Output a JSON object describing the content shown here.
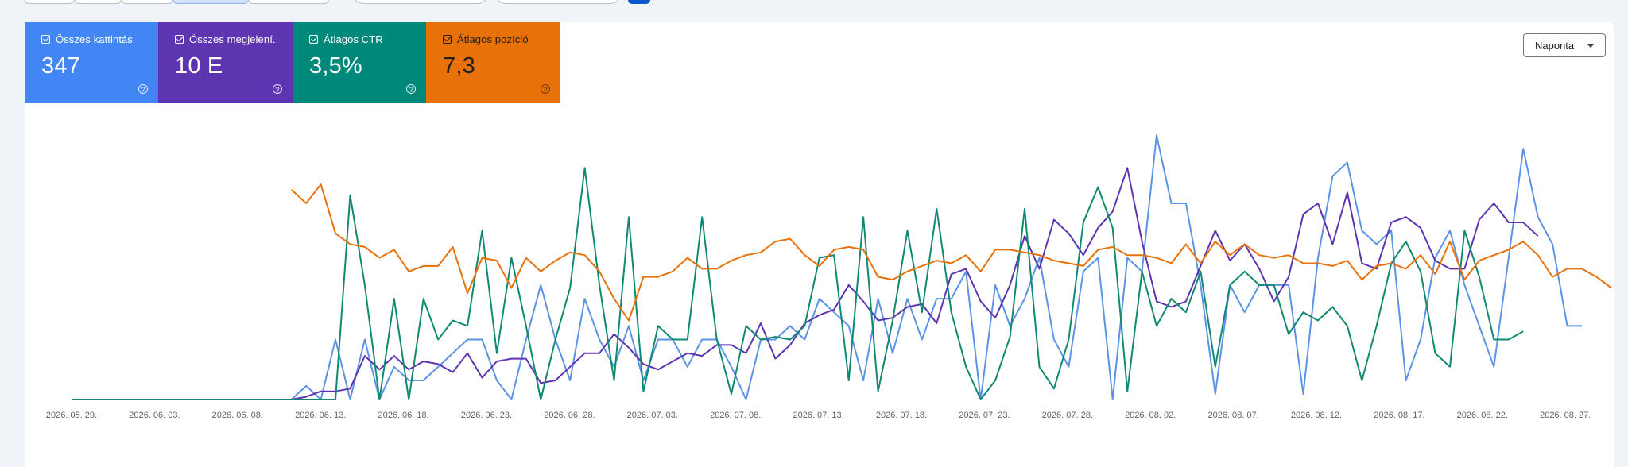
{
  "metrics": [
    {
      "label": "Összes kattintás",
      "value": "347",
      "color": "#4285f4"
    },
    {
      "label": "Összes megjelení...",
      "value": "10 E",
      "color": "#5e35b1"
    },
    {
      "label": "Átlagos CTR",
      "value": "3,5%",
      "color": "#00897b"
    },
    {
      "label": "Átlagos pozíció",
      "value": "7,3",
      "color": "#e8710a"
    }
  ],
  "help_glyph": "?",
  "granularity": {
    "selected": "Naponta"
  },
  "icons": {
    "checkbox": "checkbox-checked-icon",
    "help": "help-circle-icon",
    "dropdown": "caret-down-icon"
  },
  "chart_data": {
    "type": "line",
    "x_tick_labels": [
      "2026. 05. 29.",
      "2026. 06. 03.",
      "2026. 06. 08.",
      "2026. 06. 13.",
      "2026. 06. 18.",
      "2026. 06. 23.",
      "2026. 06. 28.",
      "2026. 07. 03.",
      "2026. 07. 08.",
      "2026. 07. 13.",
      "2026. 07. 18.",
      "2026. 07. 23.",
      "2026. 07. 28.",
      "2026. 08. 02.",
      "2026. 08. 07.",
      "2026. 08. 12.",
      "2026. 08. 17.",
      "2026. 08. 22.",
      "2026. 08. 27."
    ],
    "x_start": "2026-05-29",
    "x_end": "2026-08-29",
    "grid": false,
    "legend": "none",
    "series": [
      {
        "name": "Összes kattintás",
        "color": "#5c93e6",
        "values": [
          0,
          0,
          0,
          0,
          0,
          0,
          0,
          0,
          0,
          0,
          0,
          0,
          0,
          0,
          0,
          0,
          5,
          0,
          22,
          0,
          22,
          0,
          12,
          7,
          7,
          12,
          17,
          22,
          22,
          7,
          0,
          22,
          42,
          22,
          7,
          37,
          22,
          12,
          27,
          7,
          22,
          22,
          12,
          22,
          22,
          12,
          0,
          22,
          22,
          27,
          22,
          37,
          32,
          27,
          7,
          37,
          17,
          37,
          22,
          37,
          37,
          47,
          0,
          42,
          27,
          37,
          52,
          22,
          12,
          47,
          52,
          0,
          52,
          47,
          97,
          72,
          72,
          42,
          2,
          42,
          32,
          42,
          42,
          42,
          2,
          52,
          82,
          87,
          62,
          57,
          62,
          7,
          22,
          52,
          62,
          42,
          27,
          12,
          52,
          92,
          67,
          57,
          27,
          27
        ]
      },
      {
        "name": "Összes megjelenítés",
        "color": "#5e35b1",
        "values": [
          0,
          0,
          0,
          0,
          0,
          0,
          0,
          0,
          0,
          0,
          0,
          0,
          0,
          0,
          0,
          0,
          1,
          3,
          3,
          4,
          16,
          11,
          16,
          11,
          14,
          13,
          10,
          17,
          8,
          14,
          15,
          15,
          6,
          7,
          12,
          17,
          17,
          24,
          19,
          13,
          11,
          14,
          17,
          16,
          20,
          20,
          17,
          28,
          15,
          20,
          28,
          31,
          33,
          42,
          36,
          29,
          30,
          34,
          35,
          28,
          46,
          48,
          36,
          30,
          42,
          60,
          48,
          66,
          61,
          53,
          63,
          69,
          85,
          58,
          36,
          34,
          36,
          49,
          62,
          51,
          57,
          48,
          36,
          45,
          68,
          72,
          57,
          76,
          50,
          48,
          65,
          67,
          63,
          51,
          48,
          48,
          66,
          72,
          65,
          65,
          60
        ]
      },
      {
        "name": "Átlagos CTR",
        "color": "#0f8a72",
        "values": [
          0,
          0,
          0,
          0,
          0,
          0,
          0,
          0,
          0,
          0,
          0,
          0,
          0,
          0,
          0,
          0,
          0,
          0,
          0,
          75,
          42,
          0,
          37,
          0,
          37,
          22,
          29,
          27,
          62,
          17,
          52,
          27,
          0,
          22,
          41,
          85,
          42,
          7,
          67,
          3,
          27,
          22,
          22,
          67,
          22,
          2,
          27,
          22,
          23,
          22,
          27,
          52,
          53,
          7,
          67,
          3,
          29,
          62,
          32,
          70,
          32,
          12,
          0,
          7,
          23,
          70,
          12,
          4,
          22,
          65,
          78,
          63,
          3,
          47,
          27,
          37,
          32,
          47,
          12,
          42,
          47,
          42,
          42,
          24,
          32,
          29,
          34,
          27,
          7,
          27,
          50,
          58,
          47,
          17,
          12,
          62,
          45,
          22,
          22,
          25
        ]
      },
      {
        "name": "Átlagos pozíció",
        "color": "#e8710a",
        "values": [
          null,
          null,
          null,
          null,
          null,
          null,
          null,
          null,
          null,
          null,
          null,
          null,
          null,
          null,
          null,
          77,
          72,
          79,
          61,
          57,
          56,
          52,
          55,
          47,
          49,
          49,
          56,
          39,
          52,
          51,
          41,
          52,
          47,
          51,
          54,
          53,
          47,
          37,
          29,
          45,
          45,
          47,
          52,
          48,
          48,
          51,
          53,
          54,
          58,
          59,
          53,
          49,
          55,
          56,
          55,
          45,
          44,
          47,
          49,
          51,
          50,
          53,
          47,
          55,
          55,
          54,
          53,
          51,
          50,
          49,
          55,
          56,
          53,
          53,
          52,
          50,
          57,
          50,
          58,
          53,
          57,
          53,
          52,
          53,
          50,
          50,
          49,
          51,
          44,
          49,
          50,
          48,
          53,
          46,
          58,
          44,
          51,
          53,
          55,
          58,
          53,
          45,
          48,
          48,
          45,
          41
        ]
      }
    ]
  }
}
